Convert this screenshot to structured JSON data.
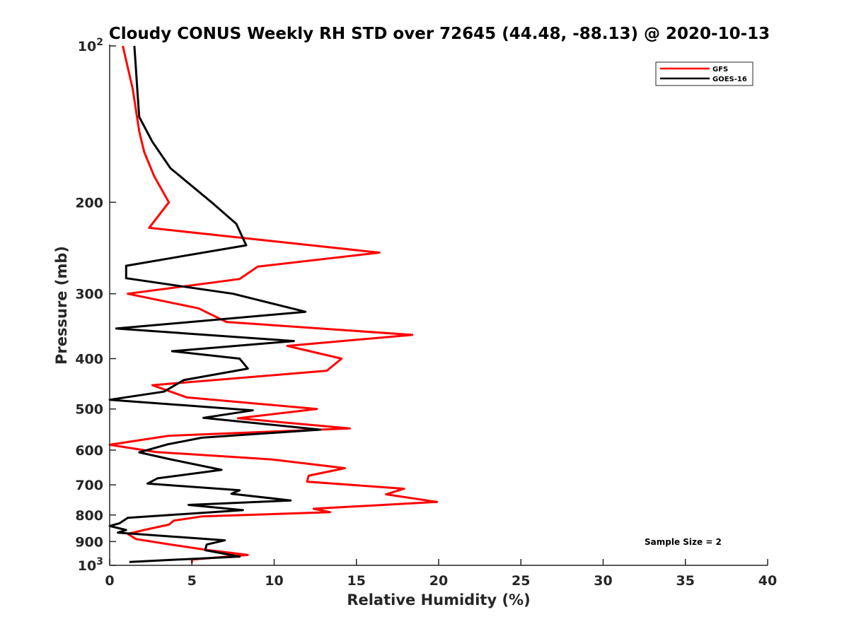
{
  "chart_data": {
    "type": "line",
    "title": "Cloudy CONUS Weekly RH STD over 72645 (44.48, -88.13) @ 2020-10-13",
    "xlabel": "Relative Humidity (%)",
    "ylabel": "Pressure (mb)",
    "xlim": [
      0,
      40
    ],
    "ylim": [
      100,
      1000
    ],
    "y_scale": "log",
    "y_reversed": true,
    "x_ticks": [
      "0",
      "5",
      "10",
      "15",
      "20",
      "25",
      "30",
      "35",
      "40"
    ],
    "y_ticks": [
      {
        "value": 100,
        "base": "10",
        "exp": "2"
      },
      {
        "value": 200,
        "label": "200"
      },
      {
        "value": 300,
        "label": "300"
      },
      {
        "value": 400,
        "label": "400"
      },
      {
        "value": 500,
        "label": "500"
      },
      {
        "value": 600,
        "label": "600"
      },
      {
        "value": 700,
        "label": "700"
      },
      {
        "value": 800,
        "label": "800"
      },
      {
        "value": 900,
        "label": "900"
      },
      {
        "value": 1000,
        "base": "10",
        "exp": "3"
      }
    ],
    "legend_position": "top-right",
    "annotation": "Sample Size = 2",
    "series": [
      {
        "name": "GFS",
        "color": "#ff0000",
        "points": [
          [
            0.8,
            100
          ],
          [
            1.1,
            110
          ],
          [
            1.4,
            121
          ],
          [
            1.6,
            133
          ],
          [
            1.8,
            146
          ],
          [
            2.1,
            160
          ],
          [
            2.7,
            178
          ],
          [
            3.6,
            200
          ],
          [
            2.4,
            224
          ],
          [
            16.4,
            250
          ],
          [
            9.0,
            266
          ],
          [
            7.9,
            281
          ],
          [
            1.1,
            300
          ],
          [
            5.4,
            320
          ],
          [
            7.1,
            340
          ],
          [
            18.4,
            360
          ],
          [
            10.8,
            378
          ],
          [
            14.1,
            400
          ],
          [
            13.2,
            422
          ],
          [
            2.6,
            450
          ],
          [
            4.7,
            475
          ],
          [
            12.6,
            500
          ],
          [
            7.8,
            521
          ],
          [
            14.6,
            545
          ],
          [
            3.6,
            563
          ],
          [
            0.0,
            586
          ],
          [
            2.8,
            605
          ],
          [
            9.8,
            625
          ],
          [
            14.3,
            650
          ],
          [
            12.1,
            672
          ],
          [
            12.0,
            690
          ],
          [
            17.9,
            712
          ],
          [
            16.8,
            730
          ],
          [
            19.9,
            755
          ],
          [
            12.4,
            778
          ],
          [
            13.4,
            790
          ],
          [
            5.6,
            805
          ],
          [
            3.9,
            820
          ],
          [
            3.6,
            835
          ],
          [
            2.1,
            855
          ],
          [
            1.1,
            870
          ],
          [
            1.6,
            890
          ],
          [
            3.5,
            910
          ],
          [
            6.0,
            935
          ],
          [
            8.4,
            955
          ],
          [
            5.0,
            975
          ],
          [
            5.0,
            990
          ]
        ]
      },
      {
        "name": "GOES-16",
        "color": "#000000",
        "points": [
          [
            1.5,
            100
          ],
          [
            1.6,
            111
          ],
          [
            1.7,
            124
          ],
          [
            1.8,
            137
          ],
          [
            2.6,
            153
          ],
          [
            3.7,
            172
          ],
          [
            6.2,
            200
          ],
          [
            7.7,
            220
          ],
          [
            8.3,
            242
          ],
          [
            1.0,
            265
          ],
          [
            1.0,
            280
          ],
          [
            7.5,
            300
          ],
          [
            11.9,
            325
          ],
          [
            0.4,
            350
          ],
          [
            11.2,
            370
          ],
          [
            3.8,
            387
          ],
          [
            7.9,
            400
          ],
          [
            8.4,
            418
          ],
          [
            4.5,
            440
          ],
          [
            3.3,
            463
          ],
          [
            0.0,
            480
          ],
          [
            8.7,
            503
          ],
          [
            5.7,
            520
          ],
          [
            12.8,
            548
          ],
          [
            5.6,
            568
          ],
          [
            3.5,
            585
          ],
          [
            1.8,
            606
          ],
          [
            3.7,
            625
          ],
          [
            6.8,
            655
          ],
          [
            2.9,
            680
          ],
          [
            2.3,
            696
          ],
          [
            7.9,
            717
          ],
          [
            7.4,
            728
          ],
          [
            11.0,
            750
          ],
          [
            4.8,
            765
          ],
          [
            8.1,
            783
          ],
          [
            1.1,
            810
          ],
          [
            0.6,
            830
          ],
          [
            0.0,
            840
          ],
          [
            1.0,
            855
          ],
          [
            0.5,
            865
          ],
          [
            7.0,
            895
          ],
          [
            5.9,
            912
          ],
          [
            5.8,
            935
          ],
          [
            7.9,
            962
          ],
          [
            1.2,
            985
          ]
        ]
      }
    ]
  }
}
